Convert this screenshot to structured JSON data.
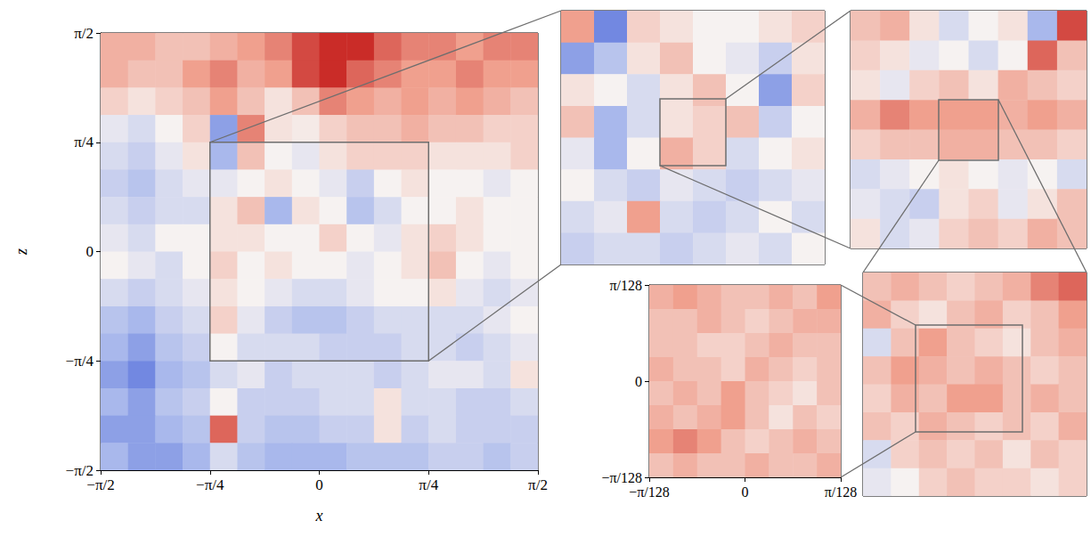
{
  "color_scale": {
    "range": [
      -1,
      1
    ],
    "colors": [
      "#1f3fd0",
      "#a9b8ec",
      "#f6f2f1",
      "#f0a08e",
      "#c00f0f"
    ]
  },
  "chart_data": [
    {
      "type": "heatmap",
      "xlabel": "x",
      "ylabel": "z",
      "xlim": [
        -1.5708,
        1.5708
      ],
      "ylim": [
        -1.5708,
        1.5708
      ],
      "xticks": [
        {
          "value": -1.5708,
          "label": "−π/2"
        },
        {
          "value": -0.7854,
          "label": "−π/4"
        },
        0,
        {
          "value": 0.7854,
          "label": "π/4"
        },
        {
          "value": 1.5708,
          "label": "π/2"
        }
      ],
      "yticks": [
        {
          "value": -1.5708,
          "label": "−π/2"
        },
        {
          "value": -0.7854,
          "label": "−π/4"
        },
        0,
        {
          "value": 0.7854,
          "label": "π/4"
        },
        {
          "value": 1.5708,
          "label": "π/2"
        }
      ],
      "zoom_box": {
        "x": [
          -0.7854,
          0.7854
        ],
        "z": [
          -0.7854,
          0.7854
        ]
      },
      "cells": [
        [
          0.4,
          0.4,
          0.3,
          0.3,
          0.4,
          0.5,
          0.6,
          0.8,
          0.9,
          0.9,
          0.7,
          0.6,
          0.6,
          0.5,
          0.6,
          0.6
        ],
        [
          0.4,
          0.3,
          0.3,
          0.5,
          0.6,
          0.4,
          0.5,
          0.8,
          0.9,
          0.7,
          0.6,
          0.5,
          0.5,
          0.6,
          0.5,
          0.5
        ],
        [
          0.2,
          0.1,
          0.2,
          0.3,
          0.5,
          0.3,
          0.1,
          0.3,
          0.6,
          0.5,
          0.4,
          0.5,
          0.4,
          0.5,
          0.4,
          0.3
        ],
        [
          -0.1,
          -0.2,
          0.0,
          0.2,
          -0.6,
          0.6,
          0.1,
          0.05,
          0.2,
          0.3,
          0.3,
          0.4,
          0.3,
          0.3,
          0.2,
          0.2
        ],
        [
          -0.2,
          -0.3,
          -0.1,
          0.1,
          -0.5,
          0.3,
          0.0,
          -0.1,
          0.1,
          0.2,
          0.2,
          0.2,
          0.1,
          0.1,
          0.1,
          0.2
        ],
        [
          -0.3,
          -0.4,
          -0.2,
          -0.1,
          -0.1,
          0.0,
          0.1,
          0.0,
          -0.1,
          -0.3,
          0.0,
          0.1,
          0.0,
          0.0,
          -0.1,
          0.0
        ],
        [
          -0.2,
          -0.3,
          -0.2,
          -0.2,
          0.1,
          0.3,
          -0.5,
          0.1,
          0.0,
          -0.4,
          -0.2,
          0.0,
          0.0,
          0.1,
          0.0,
          0.0
        ],
        [
          -0.1,
          -0.2,
          0.0,
          0.0,
          0.1,
          0.1,
          0.0,
          0.0,
          0.2,
          0.0,
          -0.1,
          0.1,
          0.2,
          0.1,
          0.0,
          0.0
        ],
        [
          0.0,
          -0.1,
          -0.2,
          0.0,
          0.2,
          0.0,
          0.1,
          0.0,
          0.0,
          -0.1,
          0.0,
          0.1,
          0.3,
          0.0,
          -0.1,
          0.0
        ],
        [
          -0.2,
          -0.3,
          -0.2,
          -0.1,
          0.1,
          0.0,
          -0.1,
          -0.2,
          -0.2,
          -0.1,
          0.0,
          0.0,
          0.1,
          -0.1,
          -0.2,
          -0.1
        ],
        [
          -0.4,
          -0.5,
          -0.3,
          -0.2,
          0.2,
          -0.1,
          -0.3,
          -0.4,
          -0.4,
          -0.3,
          -0.2,
          -0.2,
          -0.2,
          -0.2,
          -0.1,
          0.0
        ],
        [
          -0.5,
          -0.6,
          -0.4,
          -0.3,
          0.0,
          -0.2,
          -0.2,
          -0.2,
          -0.3,
          -0.3,
          -0.3,
          -0.2,
          -0.2,
          -0.3,
          -0.2,
          -0.1
        ],
        [
          -0.6,
          -0.7,
          -0.5,
          -0.4,
          -0.2,
          -0.1,
          -0.3,
          -0.2,
          -0.2,
          -0.2,
          -0.3,
          -0.2,
          -0.1,
          -0.1,
          -0.2,
          0.1
        ],
        [
          -0.5,
          -0.6,
          -0.4,
          -0.3,
          0.0,
          -0.3,
          -0.3,
          -0.3,
          -0.2,
          -0.2,
          0.1,
          -0.2,
          -0.2,
          -0.3,
          -0.3,
          -0.2
        ],
        [
          -0.6,
          -0.6,
          -0.5,
          -0.4,
          0.7,
          -0.3,
          -0.4,
          -0.4,
          -0.3,
          -0.3,
          0.1,
          -0.3,
          -0.2,
          -0.3,
          -0.3,
          -0.3
        ],
        [
          -0.5,
          -0.6,
          -0.6,
          -0.5,
          -0.2,
          -0.4,
          -0.5,
          -0.5,
          -0.5,
          -0.4,
          -0.4,
          -0.4,
          -0.3,
          -0.3,
          -0.4,
          -0.3
        ]
      ]
    },
    {
      "type": "heatmap",
      "tick_labels": false,
      "cells": [
        [
          0.5,
          -0.7,
          0.2,
          0.1,
          0.0,
          0.0,
          0.1,
          0.2
        ],
        [
          -0.6,
          -0.4,
          0.1,
          0.3,
          0.0,
          -0.1,
          -0.3,
          0.1
        ],
        [
          0.1,
          0.0,
          -0.2,
          0.1,
          0.3,
          0.0,
          -0.6,
          0.2
        ],
        [
          0.3,
          -0.5,
          -0.2,
          0.1,
          0.2,
          0.3,
          -0.3,
          0.0
        ],
        [
          -0.1,
          -0.5,
          0.0,
          0.4,
          0.2,
          -0.2,
          0.0,
          0.1
        ],
        [
          0.0,
          -0.2,
          -0.3,
          -0.1,
          -0.2,
          -0.3,
          -0.2,
          -0.1
        ],
        [
          -0.2,
          -0.1,
          0.5,
          -0.2,
          -0.3,
          -0.2,
          0.0,
          -0.2
        ],
        [
          -0.3,
          -0.2,
          -0.2,
          -0.3,
          -0.2,
          -0.1,
          -0.2,
          0.0
        ]
      ]
    },
    {
      "type": "heatmap",
      "tick_labels": false,
      "cells": [
        [
          0.3,
          0.4,
          0.1,
          -0.2,
          0.0,
          0.1,
          -0.5,
          0.8
        ],
        [
          0.2,
          0.1,
          -0.1,
          0.0,
          -0.2,
          0.0,
          0.7,
          0.3
        ],
        [
          0.1,
          -0.1,
          0.2,
          0.3,
          0.1,
          0.4,
          0.3,
          0.2
        ],
        [
          0.4,
          0.6,
          0.5,
          0.5,
          0.5,
          0.4,
          0.5,
          0.4
        ],
        [
          0.2,
          0.3,
          0.3,
          0.4,
          0.4,
          0.3,
          0.3,
          0.2
        ],
        [
          -0.2,
          -0.1,
          0.0,
          0.1,
          0.0,
          -0.1,
          0.0,
          -0.2
        ],
        [
          -0.1,
          -0.2,
          -0.3,
          0.1,
          0.2,
          -0.1,
          0.1,
          0.3
        ],
        [
          0.1,
          -0.2,
          -0.1,
          0.2,
          0.3,
          0.2,
          0.4,
          0.3
        ]
      ]
    },
    {
      "type": "heatmap",
      "tick_labels": false,
      "cells": [
        [
          0.3,
          0.4,
          0.3,
          0.2,
          0.3,
          0.4,
          0.6,
          0.7
        ],
        [
          0.4,
          0.2,
          0.1,
          0.3,
          0.4,
          0.2,
          0.3,
          0.5
        ],
        [
          -0.2,
          0.3,
          0.5,
          0.3,
          0.2,
          0.1,
          0.3,
          0.4
        ],
        [
          0.3,
          0.5,
          0.4,
          0.3,
          0.4,
          0.3,
          0.2,
          0.3
        ],
        [
          0.2,
          0.4,
          0.3,
          0.5,
          0.5,
          0.3,
          0.4,
          0.3
        ],
        [
          0.3,
          0.2,
          0.4,
          0.3,
          0.2,
          0.3,
          0.2,
          0.4
        ],
        [
          -0.2,
          0.2,
          0.3,
          0.2,
          0.3,
          0.1,
          0.3,
          0.2
        ],
        [
          -0.1,
          0.0,
          0.2,
          0.3,
          0.2,
          0.2,
          0.1,
          0.2
        ]
      ]
    },
    {
      "type": "heatmap",
      "xlim": [
        -0.024544,
        0.024544
      ],
      "ylim": [
        -0.024544,
        0.024544
      ],
      "xticks": [
        {
          "value": -0.024544,
          "label": "−π/128"
        },
        0,
        {
          "value": 0.024544,
          "label": "π/128"
        }
      ],
      "yticks": [
        {
          "value": -0.024544,
          "label": "−π/128"
        },
        0,
        {
          "value": 0.024544,
          "label": "π/128"
        }
      ],
      "cells": [
        [
          0.4,
          0.5,
          0.4,
          0.3,
          0.3,
          0.4,
          0.3,
          0.5
        ],
        [
          0.3,
          0.3,
          0.4,
          0.3,
          0.2,
          0.3,
          0.4,
          0.4
        ],
        [
          0.3,
          0.3,
          0.2,
          0.2,
          0.3,
          0.4,
          0.3,
          0.3
        ],
        [
          0.4,
          0.3,
          0.3,
          0.2,
          0.4,
          0.3,
          0.2,
          0.3
        ],
        [
          0.3,
          0.4,
          0.3,
          0.5,
          0.3,
          0.2,
          0.1,
          0.3
        ],
        [
          0.4,
          0.3,
          0.4,
          0.5,
          0.3,
          0.1,
          0.3,
          0.2
        ],
        [
          0.5,
          0.6,
          0.5,
          0.3,
          0.2,
          0.3,
          0.4,
          0.3
        ],
        [
          0.3,
          0.4,
          0.3,
          0.3,
          0.4,
          0.3,
          0.3,
          0.4
        ]
      ]
    }
  ]
}
